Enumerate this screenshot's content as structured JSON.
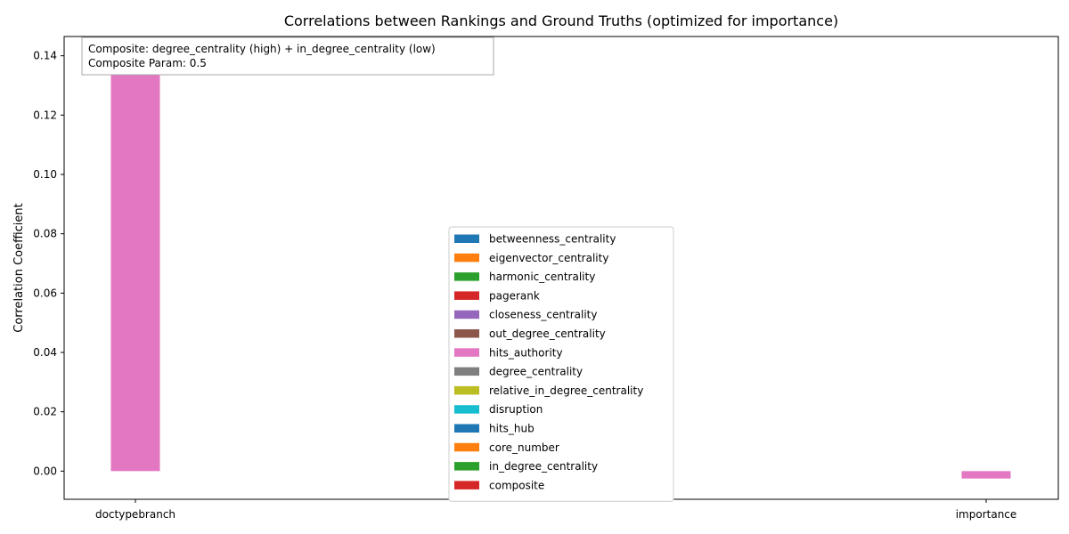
{
  "chart_data": {
    "type": "bar",
    "title": "Correlations between Rankings and Ground Truths (optimized for importance)",
    "xlabel": "",
    "ylabel": "Correlation Coefficient",
    "categories": [
      "doctypebranch",
      "importance"
    ],
    "ylim": [
      -0.0095,
      0.1465
    ],
    "yticks": [
      0.0,
      0.02,
      0.04,
      0.06,
      0.08,
      0.1,
      0.12,
      0.14
    ],
    "ytick_labels": [
      "0.00",
      "0.02",
      "0.04",
      "0.06",
      "0.08",
      "0.10",
      "0.12",
      "0.14"
    ],
    "grid": false,
    "legend_position": "lower center",
    "annotation": [
      "Composite: degree_centrality (high) + in_degree_centrality (low)",
      "Composite Param: 0.5"
    ],
    "series": [
      {
        "name": "betweenness_centrality",
        "color": "#1f77b4",
        "values": [
          0,
          0
        ]
      },
      {
        "name": "eigenvector_centrality",
        "color": "#ff7f0e",
        "values": [
          0,
          0
        ]
      },
      {
        "name": "harmonic_centrality",
        "color": "#2ca02c",
        "values": [
          0,
          0
        ]
      },
      {
        "name": "pagerank",
        "color": "#d62728",
        "values": [
          0,
          0
        ]
      },
      {
        "name": "closeness_centrality",
        "color": "#9467bd",
        "values": [
          0,
          0
        ]
      },
      {
        "name": "out_degree_centrality",
        "color": "#8c564b",
        "values": [
          0,
          0
        ]
      },
      {
        "name": "hits_authority",
        "color": "#e377c2",
        "values": [
          0.1395,
          -0.0025
        ]
      },
      {
        "name": "degree_centrality",
        "color": "#7f7f7f",
        "values": [
          0,
          0
        ]
      },
      {
        "name": "relative_in_degree_centrality",
        "color": "#bcbd22",
        "values": [
          0,
          0
        ]
      },
      {
        "name": "disruption",
        "color": "#17becf",
        "values": [
          0,
          0
        ]
      },
      {
        "name": "hits_hub",
        "color": "#1f77b4",
        "values": [
          0,
          0
        ]
      },
      {
        "name": "core_number",
        "color": "#ff7f0e",
        "values": [
          0,
          0
        ]
      },
      {
        "name": "in_degree_centrality",
        "color": "#2ca02c",
        "values": [
          0,
          0
        ]
      },
      {
        "name": "composite",
        "color": "#d62728",
        "values": [
          0,
          0
        ]
      }
    ]
  }
}
